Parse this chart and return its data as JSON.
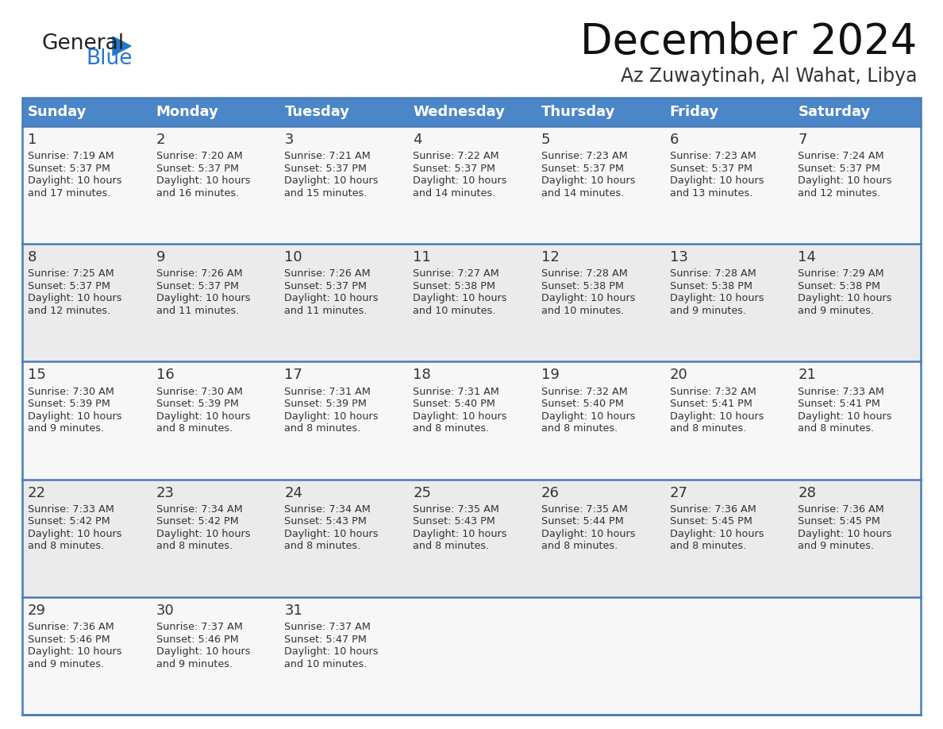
{
  "title": "December 2024",
  "subtitle": "Az Zuwaytinah, Al Wahat, Libya",
  "days_of_week": [
    "Sunday",
    "Monday",
    "Tuesday",
    "Wednesday",
    "Thursday",
    "Friday",
    "Saturday"
  ],
  "header_bg": "#4a86c8",
  "header_text": "#ffffff",
  "cell_bg_odd": "#ebebeb",
  "cell_bg_even": "#f7f7f7",
  "divider_color": "#4a7ab5",
  "text_color": "#333333",
  "logo_general_color": "#222222",
  "logo_blue_color": "#2277cc",
  "calendar_data": [
    [
      {
        "day": 1,
        "sunrise": "7:19 AM",
        "sunset": "5:37 PM",
        "daylight_hours": 10,
        "daylight_minutes": 17
      },
      {
        "day": 2,
        "sunrise": "7:20 AM",
        "sunset": "5:37 PM",
        "daylight_hours": 10,
        "daylight_minutes": 16
      },
      {
        "day": 3,
        "sunrise": "7:21 AM",
        "sunset": "5:37 PM",
        "daylight_hours": 10,
        "daylight_minutes": 15
      },
      {
        "day": 4,
        "sunrise": "7:22 AM",
        "sunset": "5:37 PM",
        "daylight_hours": 10,
        "daylight_minutes": 14
      },
      {
        "day": 5,
        "sunrise": "7:23 AM",
        "sunset": "5:37 PM",
        "daylight_hours": 10,
        "daylight_minutes": 14
      },
      {
        "day": 6,
        "sunrise": "7:23 AM",
        "sunset": "5:37 PM",
        "daylight_hours": 10,
        "daylight_minutes": 13
      },
      {
        "day": 7,
        "sunrise": "7:24 AM",
        "sunset": "5:37 PM",
        "daylight_hours": 10,
        "daylight_minutes": 12
      }
    ],
    [
      {
        "day": 8,
        "sunrise": "7:25 AM",
        "sunset": "5:37 PM",
        "daylight_hours": 10,
        "daylight_minutes": 12
      },
      {
        "day": 9,
        "sunrise": "7:26 AM",
        "sunset": "5:37 PM",
        "daylight_hours": 10,
        "daylight_minutes": 11
      },
      {
        "day": 10,
        "sunrise": "7:26 AM",
        "sunset": "5:37 PM",
        "daylight_hours": 10,
        "daylight_minutes": 11
      },
      {
        "day": 11,
        "sunrise": "7:27 AM",
        "sunset": "5:38 PM",
        "daylight_hours": 10,
        "daylight_minutes": 10
      },
      {
        "day": 12,
        "sunrise": "7:28 AM",
        "sunset": "5:38 PM",
        "daylight_hours": 10,
        "daylight_minutes": 10
      },
      {
        "day": 13,
        "sunrise": "7:28 AM",
        "sunset": "5:38 PM",
        "daylight_hours": 10,
        "daylight_minutes": 9
      },
      {
        "day": 14,
        "sunrise": "7:29 AM",
        "sunset": "5:38 PM",
        "daylight_hours": 10,
        "daylight_minutes": 9
      }
    ],
    [
      {
        "day": 15,
        "sunrise": "7:30 AM",
        "sunset": "5:39 PM",
        "daylight_hours": 10,
        "daylight_minutes": 9
      },
      {
        "day": 16,
        "sunrise": "7:30 AM",
        "sunset": "5:39 PM",
        "daylight_hours": 10,
        "daylight_minutes": 8
      },
      {
        "day": 17,
        "sunrise": "7:31 AM",
        "sunset": "5:39 PM",
        "daylight_hours": 10,
        "daylight_minutes": 8
      },
      {
        "day": 18,
        "sunrise": "7:31 AM",
        "sunset": "5:40 PM",
        "daylight_hours": 10,
        "daylight_minutes": 8
      },
      {
        "day": 19,
        "sunrise": "7:32 AM",
        "sunset": "5:40 PM",
        "daylight_hours": 10,
        "daylight_minutes": 8
      },
      {
        "day": 20,
        "sunrise": "7:32 AM",
        "sunset": "5:41 PM",
        "daylight_hours": 10,
        "daylight_minutes": 8
      },
      {
        "day": 21,
        "sunrise": "7:33 AM",
        "sunset": "5:41 PM",
        "daylight_hours": 10,
        "daylight_minutes": 8
      }
    ],
    [
      {
        "day": 22,
        "sunrise": "7:33 AM",
        "sunset": "5:42 PM",
        "daylight_hours": 10,
        "daylight_minutes": 8
      },
      {
        "day": 23,
        "sunrise": "7:34 AM",
        "sunset": "5:42 PM",
        "daylight_hours": 10,
        "daylight_minutes": 8
      },
      {
        "day": 24,
        "sunrise": "7:34 AM",
        "sunset": "5:43 PM",
        "daylight_hours": 10,
        "daylight_minutes": 8
      },
      {
        "day": 25,
        "sunrise": "7:35 AM",
        "sunset": "5:43 PM",
        "daylight_hours": 10,
        "daylight_minutes": 8
      },
      {
        "day": 26,
        "sunrise": "7:35 AM",
        "sunset": "5:44 PM",
        "daylight_hours": 10,
        "daylight_minutes": 8
      },
      {
        "day": 27,
        "sunrise": "7:36 AM",
        "sunset": "5:45 PM",
        "daylight_hours": 10,
        "daylight_minutes": 8
      },
      {
        "day": 28,
        "sunrise": "7:36 AM",
        "sunset": "5:45 PM",
        "daylight_hours": 10,
        "daylight_minutes": 9
      }
    ],
    [
      {
        "day": 29,
        "sunrise": "7:36 AM",
        "sunset": "5:46 PM",
        "daylight_hours": 10,
        "daylight_minutes": 9
      },
      {
        "day": 30,
        "sunrise": "7:37 AM",
        "sunset": "5:46 PM",
        "daylight_hours": 10,
        "daylight_minutes": 9
      },
      {
        "day": 31,
        "sunrise": "7:37 AM",
        "sunset": "5:47 PM",
        "daylight_hours": 10,
        "daylight_minutes": 10
      },
      null,
      null,
      null,
      null
    ]
  ],
  "figsize": [
    11.88,
    9.18
  ],
  "dpi": 100
}
